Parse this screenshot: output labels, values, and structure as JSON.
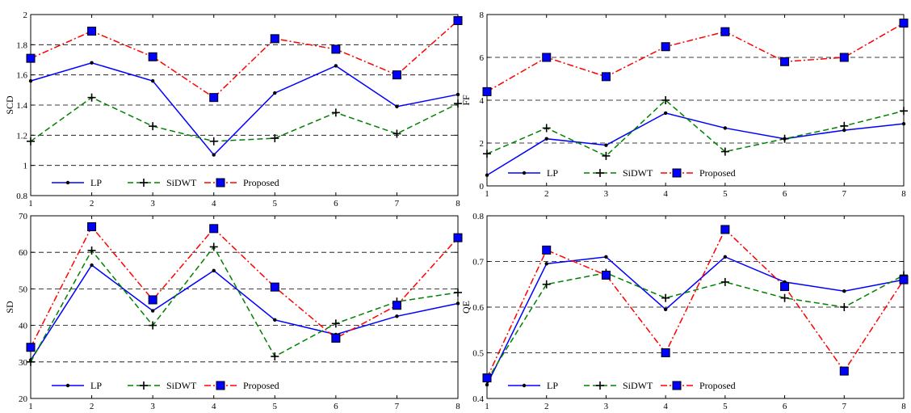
{
  "chart_data": [
    {
      "type": "line",
      "title": "",
      "xlabel": "",
      "ylabel": "SCD",
      "x": [
        1,
        2,
        3,
        4,
        5,
        6,
        7,
        8
      ],
      "xlim": [
        1,
        8
      ],
      "ylim": [
        0.8,
        2
      ],
      "xticks": [
        "1",
        "2",
        "3",
        "4",
        "5",
        "6",
        "7",
        "8"
      ],
      "yticks": [
        "0.8",
        "1",
        "1.2",
        "1.4",
        "1.6",
        "1.8",
        "2"
      ],
      "grid": "horizontal-dashed",
      "legend_position": "bottom-left",
      "series": [
        {
          "name": "LP",
          "values": [
            1.56,
            1.68,
            1.56,
            1.07,
            1.48,
            1.66,
            1.39,
            1.47
          ]
        },
        {
          "name": "SiDWT",
          "values": [
            1.16,
            1.45,
            1.26,
            1.16,
            1.18,
            1.35,
            1.21,
            1.41
          ]
        },
        {
          "name": "Proposed",
          "values": [
            1.71,
            1.89,
            1.72,
            1.45,
            1.84,
            1.77,
            1.6,
            1.96
          ]
        }
      ]
    },
    {
      "type": "line",
      "title": "",
      "xlabel": "",
      "ylabel": "FF",
      "x": [
        1,
        2,
        3,
        4,
        5,
        6,
        7,
        8
      ],
      "xlim": [
        1,
        8
      ],
      "ylim": [
        0,
        8
      ],
      "xticks": [
        "1",
        "2",
        "3",
        "4",
        "5",
        "6",
        "7",
        "8"
      ],
      "yticks": [
        "0",
        "2",
        "4",
        "6",
        "8"
      ],
      "grid": "horizontal-dashed",
      "legend_position": "bottom-left",
      "series": [
        {
          "name": "LP",
          "values": [
            0.5,
            2.2,
            1.9,
            3.4,
            2.7,
            2.2,
            2.6,
            2.9
          ]
        },
        {
          "name": "SiDWT",
          "values": [
            1.5,
            2.7,
            1.4,
            4.0,
            1.6,
            2.2,
            2.8,
            3.5
          ]
        },
        {
          "name": "Proposed",
          "values": [
            4.4,
            6.0,
            5.1,
            6.5,
            7.2,
            5.8,
            6.0,
            7.6
          ]
        }
      ]
    },
    {
      "type": "line",
      "title": "",
      "xlabel": "",
      "ylabel": "SD",
      "x": [
        1,
        2,
        3,
        4,
        5,
        6,
        7,
        8
      ],
      "xlim": [
        1,
        8
      ],
      "ylim": [
        20,
        70
      ],
      "xticks": [
        "1",
        "2",
        "3",
        "4",
        "5",
        "6",
        "7",
        "8"
      ],
      "yticks": [
        "20",
        "30",
        "40",
        "50",
        "60",
        "70"
      ],
      "grid": "horizontal-dashed",
      "legend_position": "bottom-left",
      "series": [
        {
          "name": "LP",
          "values": [
            30.5,
            56.5,
            44.0,
            55.0,
            41.5,
            37.5,
            42.5,
            46.0
          ]
        },
        {
          "name": "SiDWT",
          "values": [
            30.0,
            60.5,
            40.0,
            61.5,
            31.5,
            40.5,
            46.5,
            49.0
          ]
        },
        {
          "name": "Proposed",
          "values": [
            34.0,
            67.0,
            47.0,
            66.5,
            50.5,
            36.5,
            45.5,
            64.0
          ]
        }
      ]
    },
    {
      "type": "line",
      "title": "",
      "xlabel": "",
      "ylabel": "QE",
      "x": [
        1,
        2,
        3,
        4,
        5,
        6,
        7,
        8
      ],
      "xlim": [
        1,
        8
      ],
      "ylim": [
        0.4,
        0.8
      ],
      "xticks": [
        "1",
        "2",
        "3",
        "4",
        "5",
        "6",
        "7",
        "8"
      ],
      "yticks": [
        "0.4",
        "0.5",
        "0.6",
        "0.7",
        "0.8"
      ],
      "grid": "horizontal-dashed",
      "legend_position": "bottom-left",
      "series": [
        {
          "name": "LP",
          "values": [
            0.43,
            0.695,
            0.71,
            0.595,
            0.71,
            0.655,
            0.635,
            0.66
          ]
        },
        {
          "name": "SiDWT",
          "values": [
            0.44,
            0.65,
            0.675,
            0.62,
            0.655,
            0.62,
            0.6,
            0.67
          ]
        },
        {
          "name": "Proposed",
          "values": [
            0.445,
            0.725,
            0.67,
            0.5,
            0.77,
            0.645,
            0.46,
            0.66
          ]
        }
      ]
    }
  ],
  "series_colors": {
    "LP": "#0000ff",
    "SiDWT": "#008000",
    "Proposed": "#ff0000"
  },
  "marker_styles": {
    "LP": "dot",
    "SiDWT": "plus",
    "Proposed": "blue-square"
  },
  "line_styles": {
    "LP": "solid",
    "SiDWT": "dashed",
    "Proposed": "dash-dot"
  }
}
